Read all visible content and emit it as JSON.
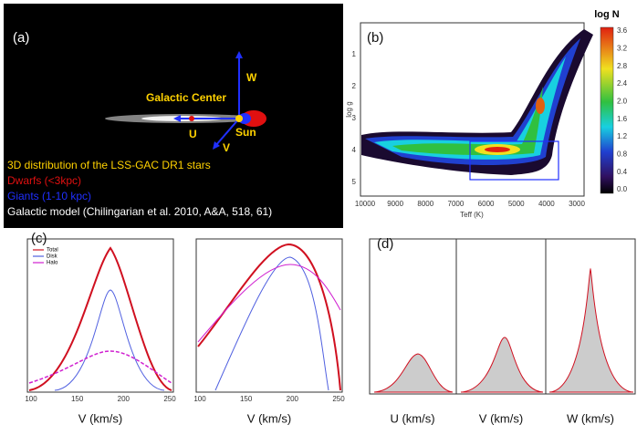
{
  "panel_a": {
    "label": "(a)",
    "center": "Galactic Center",
    "axis_w": "W",
    "axis_u": "U",
    "axis_v": "V",
    "sun": "Sun",
    "caption": "3D  distribution of the LSS-GAC DR1 stars",
    "dwarfs": "Dwarfs (<3kpc)",
    "giants": "Giants (1-10 kpc)",
    "model": "Galactic model (Chilingarian et al. 2010, A&A, 518, 61)"
  },
  "panel_b": {
    "label": "(b)",
    "x_label": "Teff (K)",
    "y_label": "log g",
    "xticks": [
      "10000",
      "9000",
      "8000",
      "7000",
      "6000",
      "5000",
      "4000",
      "3000"
    ],
    "yticks": [
      "1",
      "2",
      "3",
      "4",
      "5"
    ],
    "colorbar_title": "log N",
    "colorbar_ticks": [
      "3.6",
      "3.2",
      "2.8",
      "2.4",
      "2.0",
      "1.6",
      "1.2",
      "0.8",
      "0.4",
      "0.0"
    ]
  },
  "panel_c": {
    "label": "(c)",
    "legend": [
      "Total",
      "Disk",
      "Halo"
    ],
    "left": {
      "xticks": [
        "100",
        "150",
        "200",
        "250"
      ],
      "x_label": "V (km/s)"
    },
    "right": {
      "xticks": [
        "100",
        "150",
        "200",
        "250"
      ],
      "x_label": "V (km/s)"
    }
  },
  "panel_d": {
    "label": "(d)",
    "x_labels": [
      "U (km/s)",
      "V (km/s)",
      "W (km/s)"
    ]
  }
}
